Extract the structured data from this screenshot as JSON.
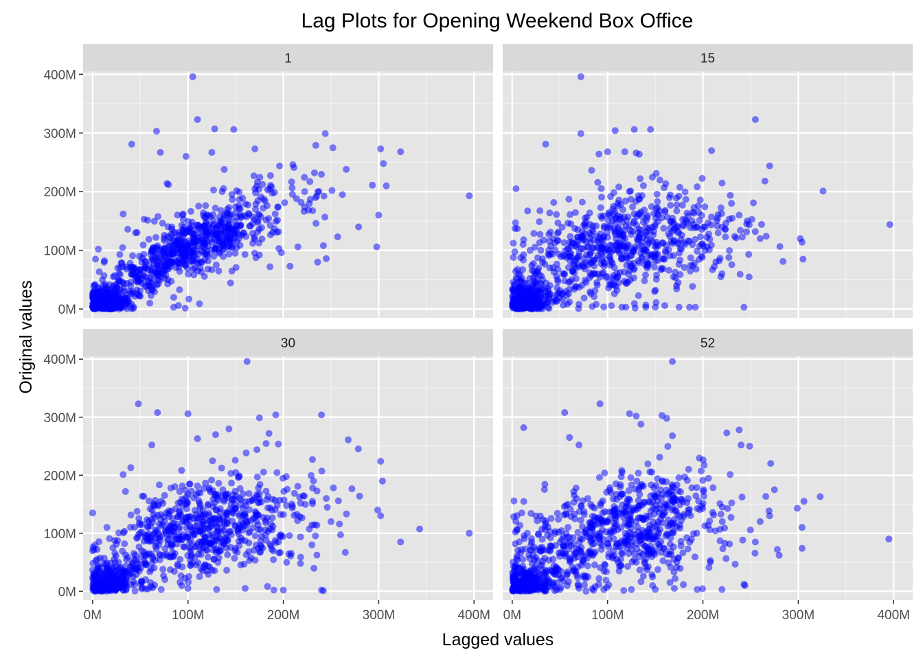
{
  "chart_data": {
    "type": "scatter",
    "title": "Lag Plots for Opening Weekend Box Office",
    "xlabel": "Lagged values",
    "ylabel": "Original values",
    "xlim": [
      -10,
      420
    ],
    "ylim": [
      -15,
      405
    ],
    "x_ticks": [
      0,
      100,
      200,
      300,
      400
    ],
    "x_tick_labels": [
      "0M",
      "100M",
      "200M",
      "300M",
      "400M"
    ],
    "y_ticks": [
      0,
      100,
      200,
      300,
      400
    ],
    "y_tick_labels": [
      "0M",
      "100M",
      "200M",
      "300M",
      "400M"
    ],
    "units": "millions of dollars",
    "grid": true,
    "point_color": "#0000ff",
    "point_opacity": 0.5,
    "panel_background": "#e5e5e5",
    "strip_background": "#d9d9d9",
    "panels": [
      {
        "lag": "1",
        "points": [
          [
            105,
            396
          ],
          [
            110,
            323
          ],
          [
            128,
            307
          ],
          [
            148,
            306
          ],
          [
            67,
            303
          ],
          [
            244,
            299
          ],
          [
            234,
            279
          ],
          [
            302,
            273
          ],
          [
            323,
            268
          ],
          [
            305,
            248
          ],
          [
            308,
            210
          ],
          [
            395,
            193
          ],
          [
            300,
            160
          ],
          [
            298,
            106
          ],
          [
            41,
            281
          ],
          [
            71,
            267
          ],
          [
            125,
            267
          ],
          [
            98,
            260
          ],
          [
            196,
            244
          ],
          [
            210,
            246
          ],
          [
            266,
            238
          ],
          [
            251,
            202
          ],
          [
            262,
            195
          ],
          [
            279,
            140
          ],
          [
            257,
            123
          ],
          [
            242,
            108
          ],
          [
            236,
            80
          ],
          [
            245,
            86
          ],
          [
            198,
            96
          ],
          [
            207,
            73
          ],
          [
            186,
            72
          ],
          [
            175,
            92
          ],
          [
            168,
            112
          ],
          [
            12,
            57
          ],
          [
            15,
            35
          ],
          [
            8,
            28
          ],
          [
            22,
            40
          ],
          [
            30,
            47
          ],
          [
            3,
            85
          ],
          [
            6,
            102
          ],
          [
            11,
            40
          ],
          [
            50,
            22
          ],
          [
            38,
            12
          ],
          [
            60,
            10
          ],
          [
            85,
            3
          ],
          [
            101,
            17
          ],
          [
            112,
            9
          ],
          [
            85,
            20
          ],
          [
            90,
            6
          ],
          [
            32,
            162
          ],
          [
            54,
            153
          ],
          [
            45,
            130
          ],
          [
            75,
            65
          ],
          [
            78,
            214
          ]
        ],
        "dense": [
          {
            "cx": 95,
            "cy": 100,
            "sx": 45,
            "sy": 42,
            "rho": 0.82,
            "n": 550
          },
          {
            "cx": 15,
            "cy": 12,
            "sx": 12,
            "sy": 12,
            "rho": 0.2,
            "n": 260
          },
          {
            "cx": 150,
            "cy": 145,
            "sx": 55,
            "sy": 50,
            "rho": 0.55,
            "n": 160
          }
        ]
      },
      {
        "lag": "15",
        "points": [
          [
            72,
            396
          ],
          [
            255,
            323
          ],
          [
            128,
            306
          ],
          [
            108,
            304
          ],
          [
            145,
            306
          ],
          [
            72,
            299
          ],
          [
            35,
            281
          ],
          [
            209,
            270
          ],
          [
            100,
            268
          ],
          [
            118,
            268
          ],
          [
            91,
            264
          ],
          [
            130,
            266
          ],
          [
            270,
            244
          ],
          [
            326,
            201
          ],
          [
            396,
            144
          ],
          [
            302,
            120
          ],
          [
            304,
            114
          ],
          [
            305,
            85
          ],
          [
            4,
            205
          ],
          [
            284,
            81
          ],
          [
            248,
            93
          ],
          [
            243,
            3
          ],
          [
            192,
            3
          ],
          [
            186,
            3
          ],
          [
            175,
            3
          ],
          [
            150,
            3
          ],
          [
            115,
            3
          ],
          [
            12,
            118
          ],
          [
            40,
            94
          ],
          [
            30,
            100
          ],
          [
            55,
            48
          ],
          [
            70,
            8
          ],
          [
            60,
            12
          ],
          [
            88,
            8
          ],
          [
            140,
            3
          ],
          [
            160,
            6
          ],
          [
            210,
            67
          ],
          [
            220,
            60
          ],
          [
            260,
            120
          ],
          [
            265,
            218
          ],
          [
            230,
            180
          ],
          [
            238,
            160
          ]
        ],
        "dense": [
          {
            "cx": 100,
            "cy": 105,
            "sx": 50,
            "sy": 48,
            "rho": 0.4,
            "n": 550
          },
          {
            "cx": 15,
            "cy": 15,
            "sx": 14,
            "sy": 18,
            "rho": 0.1,
            "n": 260
          },
          {
            "cx": 175,
            "cy": 110,
            "sx": 45,
            "sy": 45,
            "rho": 0.2,
            "n": 150
          }
        ]
      },
      {
        "lag": "30",
        "points": [
          [
            162,
            396
          ],
          [
            48,
            323
          ],
          [
            68,
            308
          ],
          [
            100,
            306
          ],
          [
            240,
            304
          ],
          [
            192,
            304
          ],
          [
            175,
            299
          ],
          [
            185,
            272
          ],
          [
            143,
            280
          ],
          [
            129,
            270
          ],
          [
            268,
            261
          ],
          [
            302,
            224
          ],
          [
            304,
            190
          ],
          [
            395,
            100
          ],
          [
            323,
            85
          ],
          [
            299,
            140
          ],
          [
            302,
            130
          ],
          [
            240,
            2
          ],
          [
            242,
            1
          ],
          [
            200,
            2
          ],
          [
            190,
            2
          ],
          [
            160,
            5
          ],
          [
            130,
            3
          ],
          [
            100,
            5
          ],
          [
            72,
            3
          ],
          [
            61,
            8
          ],
          [
            35,
            2
          ],
          [
            20,
            3
          ],
          [
            0,
            135
          ],
          [
            40,
            213
          ],
          [
            32,
            201
          ],
          [
            62,
            252
          ],
          [
            110,
            263
          ],
          [
            265,
            67
          ],
          [
            230,
            80
          ],
          [
            218,
            48
          ],
          [
            250,
            120
          ],
          [
            280,
            164
          ],
          [
            0,
            70
          ],
          [
            5,
            55
          ],
          [
            15,
            110
          ]
        ],
        "dense": [
          {
            "cx": 100,
            "cy": 100,
            "sx": 50,
            "sy": 46,
            "rho": 0.5,
            "n": 560
          },
          {
            "cx": 15,
            "cy": 15,
            "sx": 14,
            "sy": 16,
            "rho": 0.2,
            "n": 260
          },
          {
            "cx": 175,
            "cy": 125,
            "sx": 45,
            "sy": 48,
            "rho": 0.25,
            "n": 150
          }
        ]
      },
      {
        "lag": "52",
        "points": [
          [
            168,
            396
          ],
          [
            92,
            323
          ],
          [
            55,
            308
          ],
          [
            123,
            306
          ],
          [
            130,
            302
          ],
          [
            157,
            303
          ],
          [
            162,
            298
          ],
          [
            12,
            282
          ],
          [
            135,
            288
          ],
          [
            238,
            278
          ],
          [
            225,
            273
          ],
          [
            168,
            268
          ],
          [
            240,
            252
          ],
          [
            249,
            250
          ],
          [
            323,
            163
          ],
          [
            306,
            155
          ],
          [
            299,
            143
          ],
          [
            304,
            110
          ],
          [
            304,
            74
          ],
          [
            395,
            90
          ],
          [
            280,
            62
          ],
          [
            243,
            12
          ],
          [
            244,
            10
          ],
          [
            220,
            3
          ],
          [
            194,
            3
          ],
          [
            170,
            5
          ],
          [
            150,
            3
          ],
          [
            125,
            3
          ],
          [
            96,
            3
          ],
          [
            70,
            5
          ],
          [
            50,
            3
          ],
          [
            260,
            120
          ],
          [
            270,
            130
          ],
          [
            275,
            175
          ],
          [
            185,
            210
          ],
          [
            70,
            252
          ],
          [
            60,
            265
          ],
          [
            10,
            135
          ],
          [
            5,
            105
          ],
          [
            255,
            85
          ]
        ],
        "dense": [
          {
            "cx": 100,
            "cy": 100,
            "sx": 50,
            "sy": 46,
            "rho": 0.35,
            "n": 560
          },
          {
            "cx": 15,
            "cy": 15,
            "sx": 14,
            "sy": 16,
            "rho": 0.15,
            "n": 260
          },
          {
            "cx": 170,
            "cy": 120,
            "sx": 45,
            "sy": 48,
            "rho": 0.2,
            "n": 150
          }
        ]
      }
    ]
  }
}
